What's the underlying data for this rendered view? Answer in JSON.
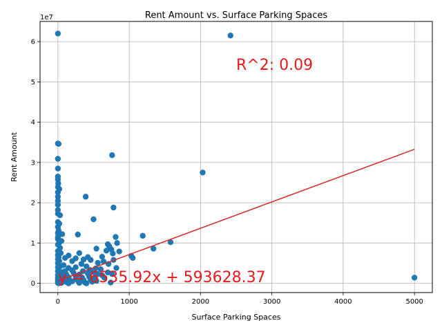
{
  "chart_data": {
    "type": "scatter",
    "title": "Rent Amount vs. Surface Parking Spaces",
    "xlabel": "Surface Parking Spaces",
    "ylabel": "Rent Amount",
    "y_offset_label": "1e7",
    "xlim": [
      -250,
      5250
    ],
    "ylim": [
      -2300000,
      65000000
    ],
    "x_ticks": [
      0,
      1000,
      2000,
      3000,
      4000,
      5000
    ],
    "x_tick_labels": [
      "0",
      "1000",
      "2000",
      "3000",
      "4000",
      "5000"
    ],
    "y_ticks": [
      0,
      10000000,
      20000000,
      30000000,
      40000000,
      50000000,
      60000000
    ],
    "y_tick_labels": [
      "0",
      "1",
      "2",
      "3",
      "4",
      "5",
      "6"
    ],
    "grid": true,
    "colors": {
      "points": "#1f77b4",
      "fit_line": "#d62728",
      "annotation": "#e41a1c"
    },
    "series": [
      {
        "points": [
          [
            0,
            62000000
          ],
          [
            2420,
            61500000
          ],
          [
            0,
            34700000
          ],
          [
            10,
            34600000
          ],
          [
            760,
            31800000
          ],
          [
            0,
            30900000
          ],
          [
            0,
            28500000
          ],
          [
            2030,
            27500000
          ],
          [
            0,
            26500000
          ],
          [
            0,
            25800000
          ],
          [
            5,
            24800000
          ],
          [
            0,
            23900000
          ],
          [
            20,
            23400000
          ],
          [
            0,
            22600000
          ],
          [
            0,
            21500000
          ],
          [
            390,
            21500000
          ],
          [
            0,
            20500000
          ],
          [
            0,
            19500000
          ],
          [
            780,
            18800000
          ],
          [
            0,
            18200000
          ],
          [
            0,
            17300000
          ],
          [
            30,
            16900000
          ],
          [
            500,
            15900000
          ],
          [
            0,
            15200000
          ],
          [
            20,
            14800000
          ],
          [
            0,
            14000000
          ],
          [
            10,
            13100000
          ],
          [
            60,
            12200000
          ],
          [
            280,
            12100000
          ],
          [
            1190,
            11800000
          ],
          [
            810,
            11500000
          ],
          [
            0,
            11000000
          ],
          [
            50,
            10500000
          ],
          [
            1580,
            10200000
          ],
          [
            830,
            10000000
          ],
          [
            700,
            9700000
          ],
          [
            720,
            9200000
          ],
          [
            1340,
            8600000
          ],
          [
            540,
            8600000
          ],
          [
            750,
            8400000
          ],
          [
            30,
            8800000
          ],
          [
            0,
            9600000
          ],
          [
            680,
            8100000
          ],
          [
            860,
            7900000
          ],
          [
            770,
            7400000
          ],
          [
            300,
            7500000
          ],
          [
            1030,
            6800000
          ],
          [
            620,
            6600000
          ],
          [
            1050,
            6300000
          ],
          [
            150,
            6900000
          ],
          [
            420,
            6500000
          ],
          [
            250,
            6200000
          ],
          [
            460,
            5800000
          ],
          [
            780,
            5800000
          ],
          [
            640,
            5400000
          ],
          [
            360,
            5900000
          ],
          [
            100,
            6300000
          ],
          [
            200,
            5500000
          ],
          [
            560,
            5100000
          ],
          [
            710,
            4800000
          ],
          [
            330,
            4800000
          ],
          [
            20,
            5500000
          ],
          [
            0,
            7000000
          ],
          [
            0,
            5000000
          ],
          [
            0,
            4000000
          ],
          [
            30,
            4200000
          ],
          [
            80,
            4500000
          ],
          [
            150,
            3800000
          ],
          [
            250,
            4000000
          ],
          [
            400,
            4200000
          ],
          [
            530,
            3700000
          ],
          [
            820,
            3800000
          ],
          [
            600,
            3500000
          ],
          [
            450,
            3300000
          ],
          [
            350,
            3000000
          ],
          [
            200,
            3200000
          ],
          [
            100,
            3000000
          ],
          [
            50,
            2800000
          ],
          [
            0,
            3000000
          ],
          [
            0,
            2000000
          ],
          [
            20,
            2500000
          ],
          [
            120,
            2200000
          ],
          [
            220,
            2600000
          ],
          [
            300,
            2200000
          ],
          [
            420,
            2400000
          ],
          [
            500,
            2800000
          ],
          [
            560,
            2300000
          ],
          [
            620,
            2000000
          ],
          [
            700,
            2700000
          ],
          [
            760,
            2300000
          ],
          [
            0,
            1500000
          ],
          [
            40,
            1300000
          ],
          [
            80,
            1800000
          ],
          [
            150,
            1500000
          ],
          [
            250,
            1700000
          ],
          [
            340,
            1400000
          ],
          [
            440,
            1600000
          ],
          [
            520,
            1200000
          ],
          [
            650,
            1400000
          ],
          [
            5000,
            1400000
          ],
          [
            0,
            1000000
          ],
          [
            30,
            800000
          ],
          [
            90,
            900000
          ],
          [
            170,
            700000
          ],
          [
            260,
            1000000
          ],
          [
            360,
            800000
          ],
          [
            460,
            900000
          ],
          [
            540,
            600000
          ],
          [
            0,
            500000
          ],
          [
            20,
            300000
          ],
          [
            60,
            400000
          ],
          [
            120,
            300000
          ],
          [
            200,
            500000
          ],
          [
            290,
            400000
          ],
          [
            380,
            200000
          ],
          [
            480,
            400000
          ],
          [
            0,
            100000
          ],
          [
            10,
            0
          ],
          [
            50,
            100000
          ],
          [
            150,
            0
          ],
          [
            300,
            100000
          ],
          [
            400,
            0
          ],
          [
            740,
            200000
          ],
          [
            0,
            12500000
          ],
          [
            0,
            11500000
          ],
          [
            15,
            10000000
          ],
          [
            0,
            8000000
          ],
          [
            40,
            7500000
          ],
          [
            0,
            6000000
          ],
          [
            10,
            6500000
          ]
        ]
      }
    ],
    "fit": {
      "slope": 6535.92,
      "intercept": 593628.37,
      "x_range": [
        0,
        5000
      ]
    },
    "annotations": [
      {
        "text": "R^2: 0.09",
        "x": 2500,
        "y": 53000000
      },
      {
        "text": "y = 6535.92x + 593628.37",
        "x": 0,
        "y": 300000
      }
    ]
  }
}
